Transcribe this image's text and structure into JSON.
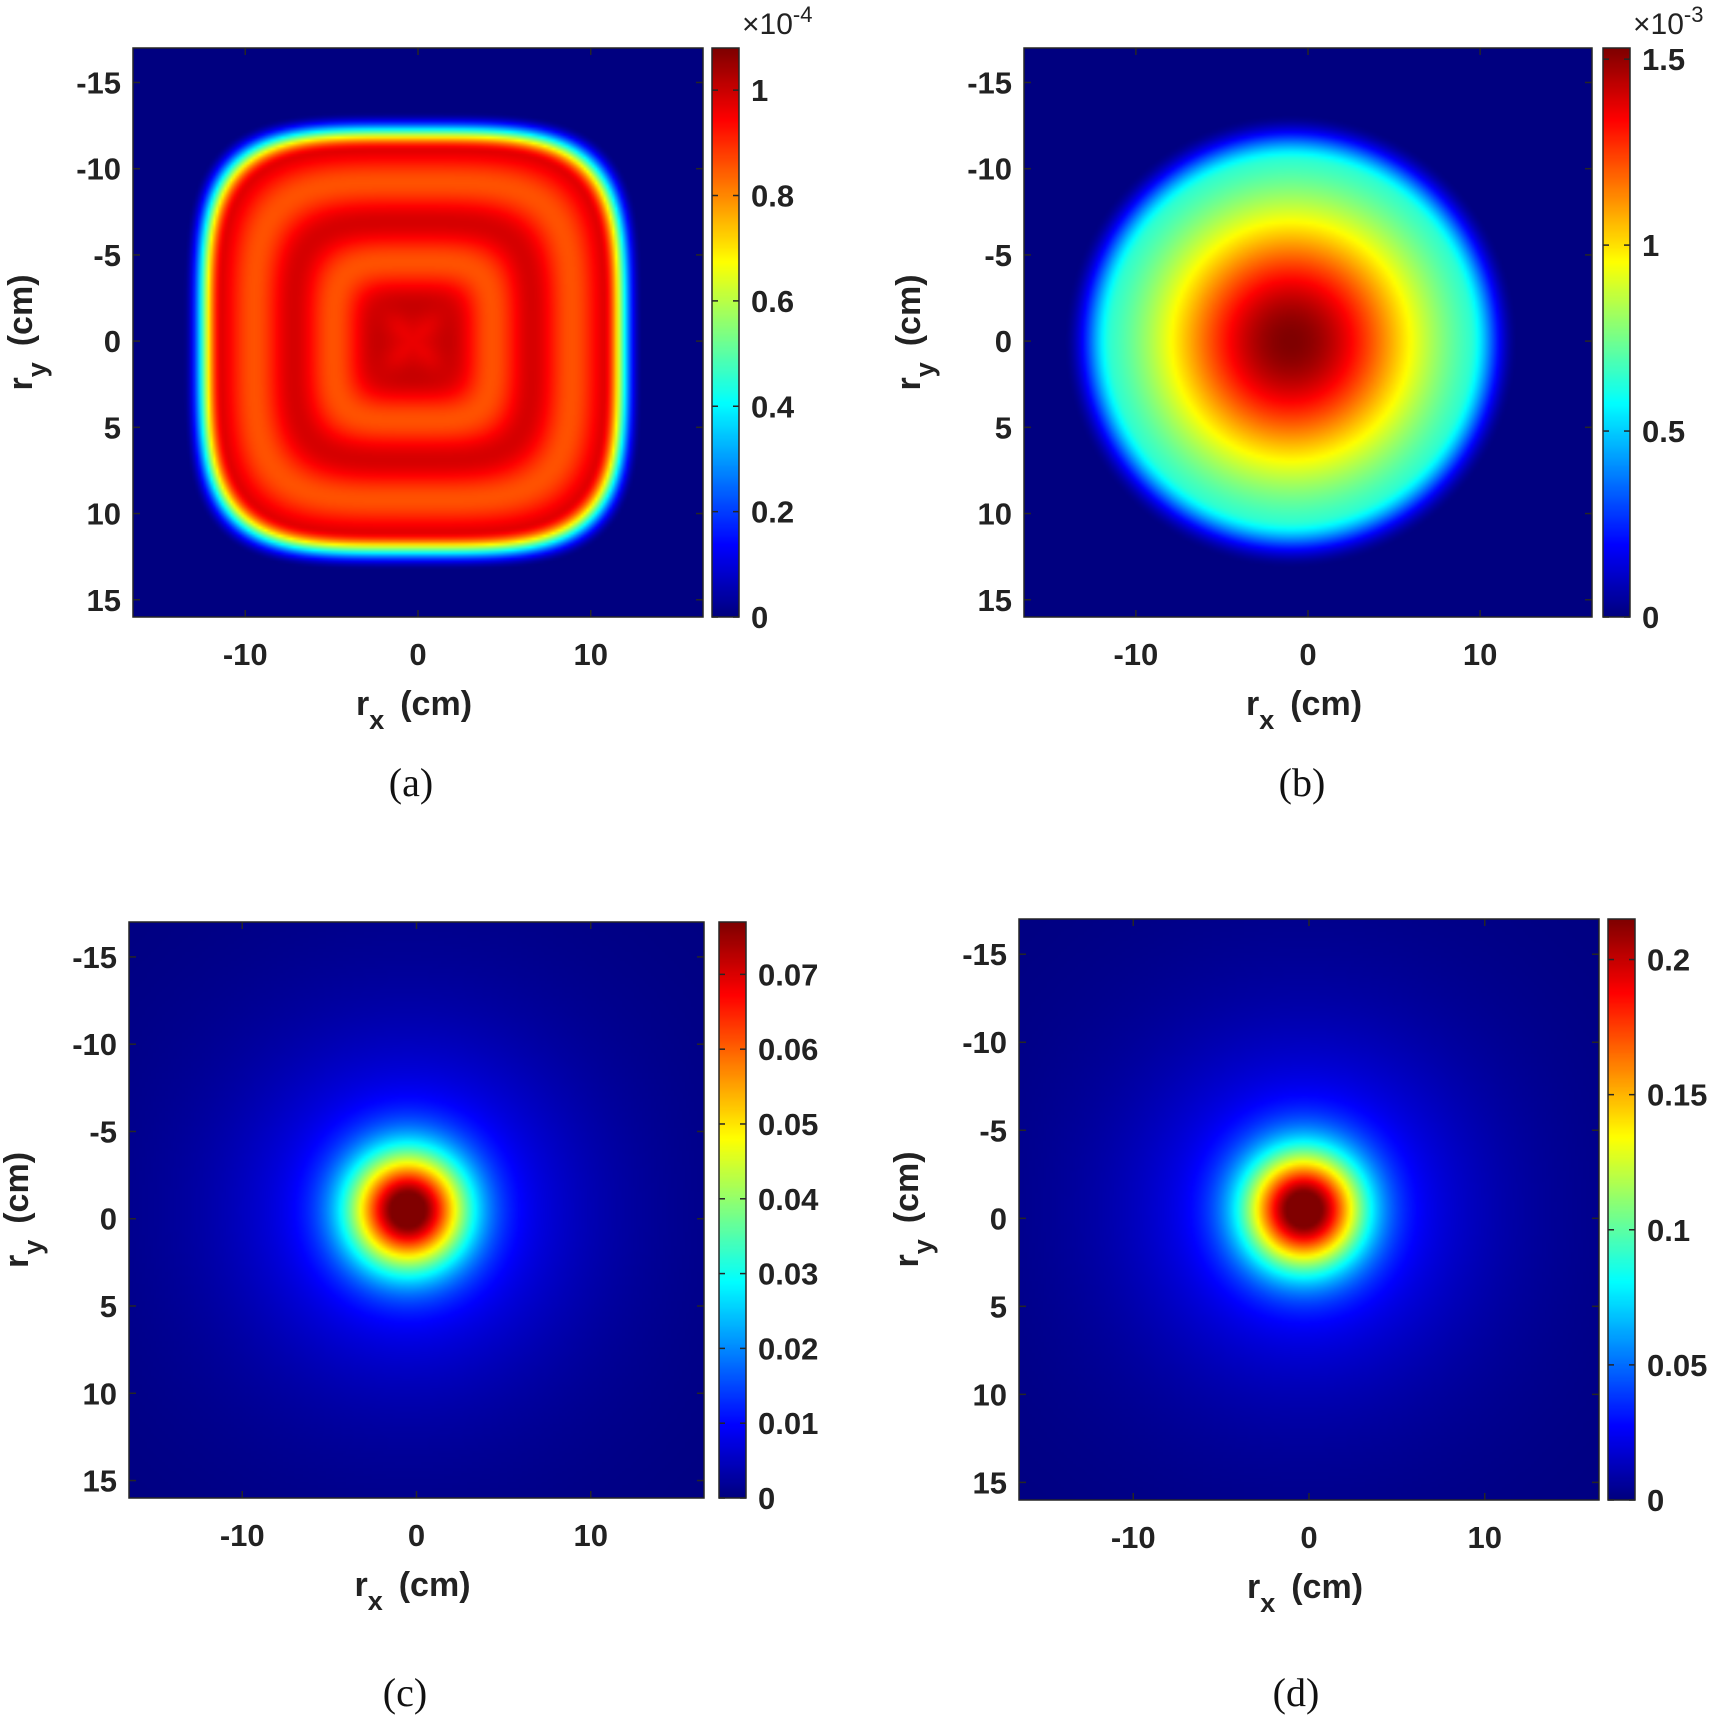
{
  "chart_data": [
    {
      "type": "heatmap",
      "panel": "(a)",
      "caption": "(a)",
      "xlabel_base": "r",
      "xlabel_sub": "x",
      "xlabel_unit": "(cm)",
      "ylabel_base": "r",
      "ylabel_sub": "y",
      "ylabel_unit": "(cm)",
      "xlim": [
        -16.5,
        16.5
      ],
      "ylim": [
        -17,
        16
      ],
      "xticks": [
        -10,
        0,
        10
      ],
      "yticks": [
        -15,
        -10,
        -5,
        0,
        5,
        10,
        15
      ],
      "colorbar": {
        "min": 0,
        "max": 1.08,
        "ticks": [
          0,
          0.2,
          0.4,
          0.6,
          0.8,
          1
        ],
        "exponent_base": "×10",
        "exponent_power": "-4"
      },
      "colormap": "jet",
      "pattern": "square-ring",
      "center": [
        -0.3,
        0
      ],
      "radius": 12.4,
      "peak": 1.08
    },
    {
      "type": "heatmap",
      "panel": "(b)",
      "caption": "(b)",
      "xlabel_base": "r",
      "xlabel_sub": "x",
      "xlabel_unit": "(cm)",
      "ylabel_base": "r",
      "ylabel_sub": "y",
      "ylabel_unit": "(cm)",
      "xlim": [
        -16.5,
        16.5
      ],
      "ylim": [
        -17,
        16
      ],
      "xticks": [
        -10,
        0,
        10
      ],
      "yticks": [
        -15,
        -10,
        -5,
        0,
        5,
        10,
        15
      ],
      "colorbar": {
        "min": 0,
        "max": 1.53,
        "ticks": [
          0,
          0.5,
          1,
          1.5
        ],
        "exponent_base": "×10",
        "exponent_power": "-3"
      },
      "colormap": "jet",
      "pattern": "smooth-disk",
      "center": [
        -1,
        0
      ],
      "radius": 12.4,
      "peak": 1.53
    },
    {
      "type": "heatmap",
      "panel": "(c)",
      "caption": "(c)",
      "xlabel_base": "r",
      "xlabel_sub": "x",
      "xlabel_unit": "(cm)",
      "ylabel_base": "r",
      "ylabel_sub": "y",
      "ylabel_unit": "(cm)",
      "xlim": [
        -16.5,
        16.5
      ],
      "ylim": [
        -17,
        16
      ],
      "xticks": [
        -10,
        0,
        10
      ],
      "yticks": [
        -15,
        -10,
        -5,
        0,
        5,
        10,
        15
      ],
      "colorbar": {
        "min": 0,
        "max": 0.077,
        "ticks": [
          0,
          0.01,
          0.02,
          0.03,
          0.04,
          0.05,
          0.06,
          0.07
        ]
      },
      "colormap": "jet",
      "pattern": "central-peak",
      "center": [
        -0.5,
        -0.5
      ],
      "peak": 0.077
    },
    {
      "type": "heatmap",
      "panel": "(d)",
      "caption": "(d)",
      "xlabel_base": "r",
      "xlabel_sub": "x",
      "xlabel_unit": "(cm)",
      "ylabel_base": "r",
      "ylabel_sub": "y",
      "ylabel_unit": "(cm)",
      "xlim": [
        -16.5,
        16.5
      ],
      "ylim": [
        -17,
        16
      ],
      "xticks": [
        -10,
        0,
        10
      ],
      "yticks": [
        -15,
        -10,
        -5,
        0,
        5,
        10,
        15
      ],
      "colorbar": {
        "min": 0,
        "max": 0.215,
        "ticks": [
          0,
          0.05,
          0.1,
          0.15,
          0.2
        ]
      },
      "colormap": "jet",
      "pattern": "central-peak",
      "center": [
        -0.3,
        -0.5
      ],
      "peak": 0.215
    }
  ]
}
